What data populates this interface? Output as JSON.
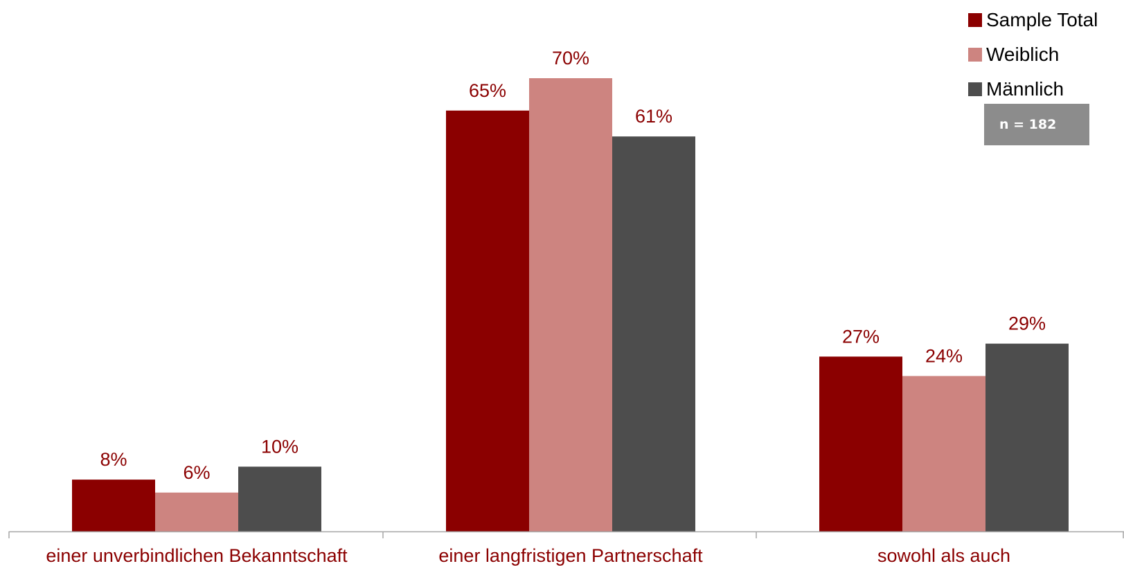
{
  "colors": {
    "label_text": "#8b0000",
    "axis": "#a6a6a6"
  },
  "legend": [
    {
      "label": "Sample Total",
      "color": "#8b0000"
    },
    {
      "label": "Weiblich",
      "color": "#cd8480"
    },
    {
      "label": "Männlich",
      "color": "#4d4d4d"
    }
  ],
  "sample_note": "n = 182",
  "chart_data": {
    "type": "bar",
    "categories": [
      "einer unverbindlichen Bekanntschaft",
      "einer langfristigen Partnerschaft",
      "sowohl als auch"
    ],
    "series": [
      {
        "name": "Sample Total",
        "color": "#8b0000",
        "values": [
          8,
          65,
          27
        ],
        "labels": [
          "8%",
          "65%",
          "27%"
        ]
      },
      {
        "name": "Weiblich",
        "color": "#cd8480",
        "values": [
          6,
          70,
          24
        ],
        "labels": [
          "6%",
          "70%",
          "24%"
        ]
      },
      {
        "name": "Männlich",
        "color": "#4d4d4d",
        "values": [
          10,
          61,
          29
        ],
        "labels": [
          "10%",
          "61%",
          "29%"
        ]
      }
    ],
    "ylim": [
      0,
      70
    ],
    "grid": false,
    "legend_position": "top-right"
  }
}
